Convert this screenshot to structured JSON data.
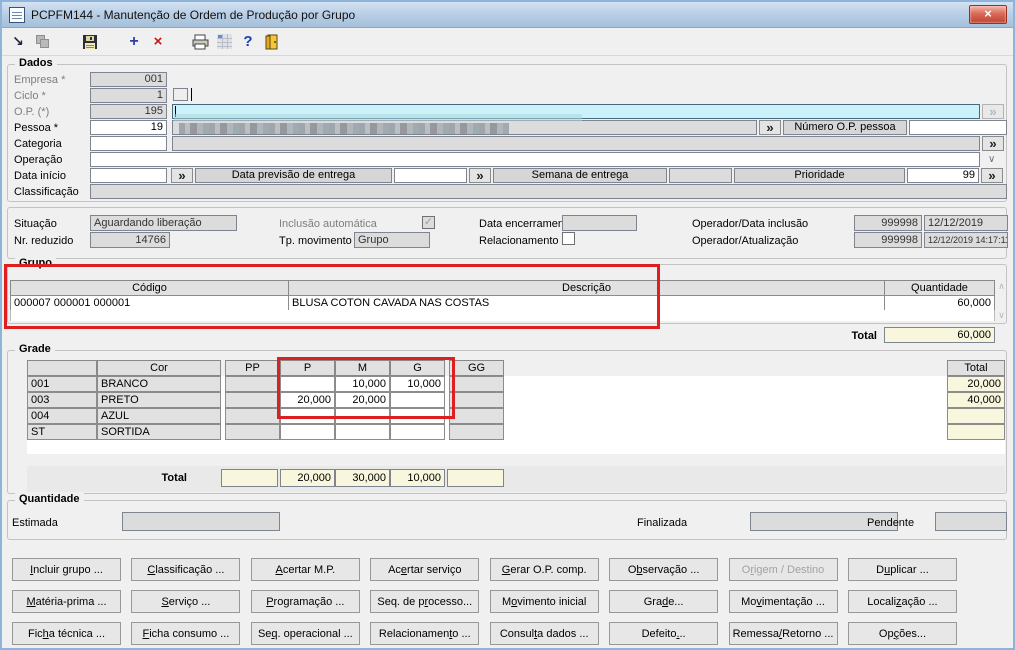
{
  "window": {
    "title": "PCPFM144 - Manutenção de Ordem de Produção por Grupo",
    "close_glyph": "×"
  },
  "toolbar": {
    "icons": [
      {
        "name": "jump-record-icon",
        "glyph": "↘"
      },
      {
        "name": "cascade-windows-icon",
        "glyph": ""
      },
      {
        "name": "save-icon",
        "glyph": ""
      },
      {
        "name": "add-icon",
        "glyph": "+"
      },
      {
        "name": "delete-icon",
        "glyph": "×"
      },
      {
        "name": "print-icon",
        "glyph": ""
      },
      {
        "name": "grid-icon",
        "glyph": ""
      },
      {
        "name": "help-icon",
        "glyph": "?"
      },
      {
        "name": "exit-icon",
        "glyph": ""
      }
    ]
  },
  "dados": {
    "title": "Dados",
    "empresa_label": "Empresa *",
    "empresa": "001",
    "ciclo_label": "Ciclo *",
    "ciclo": "1",
    "op_label": "O.P. (*)",
    "op": "195",
    "pessoa_label": "Pessoa *",
    "pessoa": "19",
    "numero_op_pessoa_label": "Número O.P. pessoa",
    "numero_op_pessoa": "",
    "categoria_label": "Categoria",
    "categoria": "",
    "operacao_label": "Operação",
    "operacao": "",
    "data_inicio_label": "Data início",
    "data_inicio": "",
    "data_previsao_label": "Data previsão de entrega",
    "data_previsao": "",
    "semana_label": "Semana de entrega",
    "semana": "",
    "prioridade_label": "Prioridade",
    "prioridade": "99",
    "classificacao_label": "Classificação",
    "classificacao": "",
    "lookup_glyph": "»",
    "dropdown_glyph": "∨"
  },
  "status": {
    "situacao_label": "Situação",
    "situacao": "Aguardando liberação",
    "nr_reduzido_label": "Nr. reduzido",
    "nr_reduzido": "14766",
    "inclusao_label": "Inclusão automática",
    "inclusao_check_glyph": "✓",
    "tp_movimento_label": "Tp. movimento",
    "tp_movimento": "Grupo",
    "data_encerramento_label": "Data encerramento",
    "data_encerramento": "",
    "relacionamento_label": "Relacionamento",
    "operador_inclusao_label": "Operador/Data inclusão",
    "operador_inclusao": "999998",
    "data_inclusao": "12/12/2019",
    "operador_atualizacao_label": "Operador/Atualização",
    "operador_atualizacao": "999998",
    "data_atualizacao": "12/12/2019 14:17:11"
  },
  "grupo": {
    "title": "Grupo",
    "headers": {
      "codigo": "Código",
      "descricao": "Descrição",
      "quantidade": "Quantidade"
    },
    "row": {
      "codigo": "000007 000001 000001",
      "descricao": "BLUSA COTON CAVADA NAS COSTAS",
      "quantidade": "60,000"
    },
    "total_label": "Total",
    "total": "60,000",
    "scroll_up_glyph": "∧",
    "scroll_down_glyph": "∨"
  },
  "grade": {
    "title": "Grade",
    "headers": {
      "code": "",
      "cor": "Cor",
      "pp": "PP",
      "p": "P",
      "m": "M",
      "g": "G",
      "gg": "GG",
      "total": "Total"
    },
    "rows": [
      {
        "code": "001",
        "color": "BRANCO",
        "pp": "",
        "p": "",
        "m": "10,000",
        "g": "10,000",
        "gg": "",
        "total": "20,000"
      },
      {
        "code": "003",
        "color": "PRETO",
        "pp": "",
        "p": "20,000",
        "m": "20,000",
        "g": "",
        "gg": "",
        "total": "40,000"
      },
      {
        "code": "004",
        "color": "AZUL",
        "pp": "",
        "p": "",
        "m": "",
        "g": "",
        "gg": "",
        "total": ""
      },
      {
        "code": "ST",
        "color": "SORTIDA",
        "pp": "",
        "p": "",
        "m": "",
        "g": "",
        "gg": "",
        "total": ""
      }
    ],
    "footer": {
      "label": "Total",
      "pp": "",
      "p": "20,000",
      "m": "30,000",
      "g": "10,000",
      "gg": ""
    }
  },
  "quantidade": {
    "title": "Quantidade",
    "estimada_label": "Estimada",
    "estimada": "",
    "finalizada_label": "Finalizada",
    "finalizada": "",
    "pendente_label": "Pendente",
    "pendente": ""
  },
  "action_buttons": {
    "rows": [
      [
        {
          "pre": "",
          "key": "I",
          "post": "ncluir grupo ..."
        },
        {
          "pre": "",
          "key": "C",
          "post": "lassificação ..."
        },
        {
          "pre": "",
          "key": "A",
          "post": "certar M.P."
        },
        {
          "pre": "Ac",
          "key": "e",
          "post": "rtar serviço"
        },
        {
          "pre": "",
          "key": "G",
          "post": "erar O.P. comp."
        },
        {
          "pre": "O",
          "key": "b",
          "post": "servação ..."
        },
        {
          "pre": "O",
          "key": "r",
          "post": "igem / Destino",
          "disabled": true
        },
        {
          "pre": "D",
          "key": "u",
          "post": "plicar ..."
        }
      ],
      [
        {
          "pre": "",
          "key": "M",
          "post": "atéria-prima ..."
        },
        {
          "pre": "",
          "key": "S",
          "post": "erviço ..."
        },
        {
          "pre": "",
          "key": "P",
          "post": "rogramação ..."
        },
        {
          "pre": "Seq. de p",
          "key": "r",
          "post": "ocesso..."
        },
        {
          "pre": "M",
          "key": "o",
          "post": "vimento inicial"
        },
        {
          "pre": "Gra",
          "key": "d",
          "post": "e..."
        },
        {
          "pre": "Mo",
          "key": "v",
          "post": "imentação ..."
        },
        {
          "pre": "Locali",
          "key": "z",
          "post": "ação ..."
        }
      ],
      [
        {
          "pre": "Fic",
          "key": "h",
          "post": "a técnica ..."
        },
        {
          "pre": "",
          "key": "F",
          "post": "icha consumo ..."
        },
        {
          "pre": "Se",
          "key": "q",
          "post": ". operacional ..."
        },
        {
          "pre": "Relacionamen",
          "key": "t",
          "post": "o ..."
        },
        {
          "pre": "Consul",
          "key": "t",
          "post": "a dados ..."
        },
        {
          "pre": "Defeito ",
          "key": ".",
          "post": ".."
        },
        {
          "pre": "Remessa",
          "key": "/",
          "post": "Retorno ..."
        },
        {
          "pre": "Op",
          "key": "ç",
          "post": "ões..."
        }
      ]
    ]
  },
  "annotations": {
    "highlight_color": "#dd1f1f"
  }
}
